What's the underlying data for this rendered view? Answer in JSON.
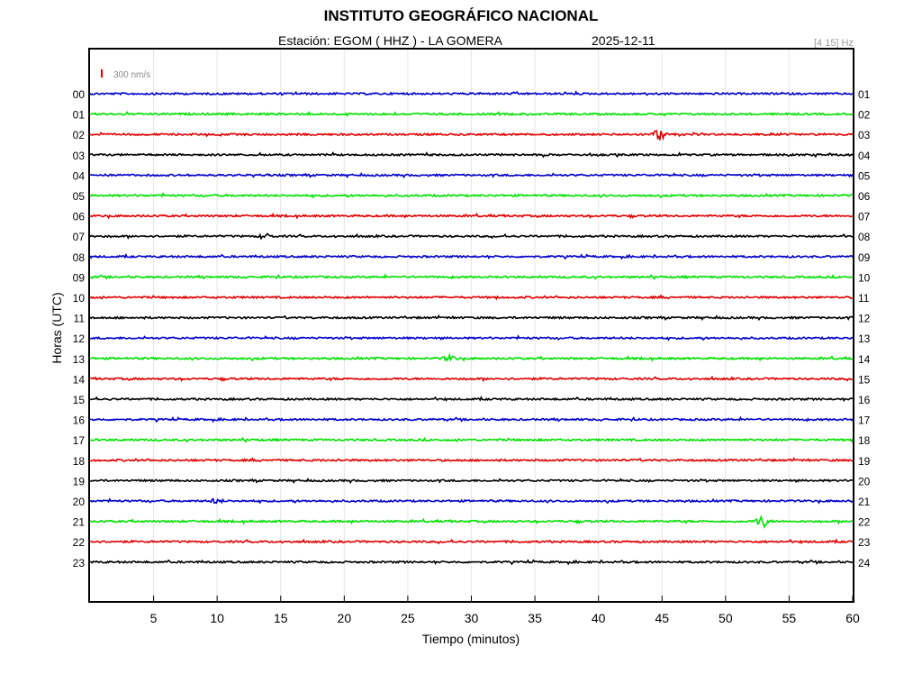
{
  "header": {
    "title": "INSTITUTO GEOGRÁFICO NACIONAL",
    "station_line": "Estación:  EGOM ( HHZ ) - LA GOMERA",
    "date": "2025-12-11",
    "filter": "[4 15] Hz"
  },
  "chart_data": {
    "type": "line",
    "title": "INSTITUTO GEOGRÁFICO NACIONAL",
    "xlabel": "Tiempo (minutos)",
    "ylabel": "Horas (UTC)",
    "xlim": [
      0,
      60
    ],
    "x_ticks": [
      5,
      10,
      15,
      20,
      25,
      30,
      35,
      40,
      45,
      50,
      55,
      60
    ],
    "left_labels": [
      "00",
      "01",
      "02",
      "03",
      "04",
      "05",
      "06",
      "07",
      "08",
      "09",
      "10",
      "11",
      "12",
      "13",
      "14",
      "15",
      "16",
      "17",
      "18",
      "19",
      "20",
      "21",
      "22",
      "23"
    ],
    "right_labels": [
      "01",
      "02",
      "03",
      "04",
      "05",
      "06",
      "07",
      "08",
      "09",
      "10",
      "11",
      "12",
      "13",
      "14",
      "15",
      "16",
      "17",
      "18",
      "19",
      "20",
      "21",
      "22",
      "23",
      "24"
    ],
    "scale_label": "300 nm/s",
    "scale_color": "#e00000",
    "grid": true,
    "colors": [
      "#0000cc",
      "#00e000",
      "#e00000",
      "#000000"
    ],
    "events": [
      {
        "hour": 2,
        "minute": 44.8,
        "amp": 7
      },
      {
        "hour": 7,
        "minute": 13.8,
        "amp": 3
      },
      {
        "hour": 13,
        "minute": 28.3,
        "amp": 3
      },
      {
        "hour": 20,
        "minute": 9.9,
        "amp": 2.5
      },
      {
        "hour": 21,
        "minute": 52.9,
        "amp": 7
      }
    ]
  }
}
